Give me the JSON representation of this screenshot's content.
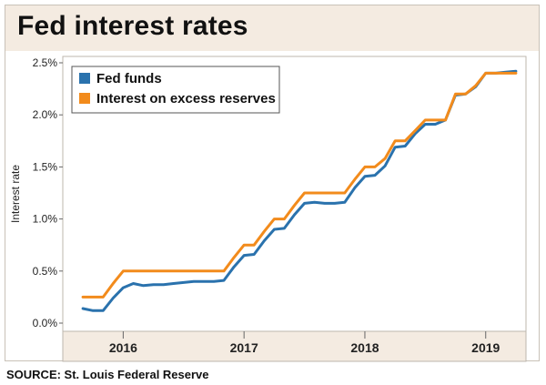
{
  "title": "Fed interest rates",
  "source": "SOURCE: St. Louis Federal Reserve",
  "colors": {
    "fed_funds": "#2a72ad",
    "ioer": "#f28b1c",
    "title_band": "#f4ebe1"
  },
  "chart_data": {
    "type": "line",
    "title": "Fed interest rates",
    "xlabel": "",
    "ylabel": "Interest rate",
    "x_tick_labels": [
      "2016",
      "2017",
      "2018",
      "2019"
    ],
    "y_tick_labels": [
      "0.0%",
      "0.5%",
      "1.0%",
      "1.5%",
      "2.0%",
      "2.5%"
    ],
    "y_ticks": [
      0,
      0.5,
      1.0,
      1.5,
      2.0,
      2.5
    ],
    "ylim": [
      0,
      2.5
    ],
    "xlim": [
      "2015-07",
      "2019-05"
    ],
    "x_ticks": [
      "2016",
      "2017",
      "2018",
      "2019"
    ],
    "grid": false,
    "legend": "top-left",
    "series": [
      {
        "name": "Fed funds",
        "color": "#2a72ad",
        "x": [
          "2015-09",
          "2015-10",
          "2015-11",
          "2015-12",
          "2016-01",
          "2016-02",
          "2016-03",
          "2016-04",
          "2016-05",
          "2016-06",
          "2016-07",
          "2016-08",
          "2016-09",
          "2016-10",
          "2016-11",
          "2016-12",
          "2017-01",
          "2017-02",
          "2017-03",
          "2017-04",
          "2017-05",
          "2017-06",
          "2017-07",
          "2017-08",
          "2017-09",
          "2017-10",
          "2017-11",
          "2017-12",
          "2018-01",
          "2018-02",
          "2018-03",
          "2018-04",
          "2018-05",
          "2018-06",
          "2018-07",
          "2018-08",
          "2018-09",
          "2018-10",
          "2018-11",
          "2018-12",
          "2019-01",
          "2019-02",
          "2019-03",
          "2019-04"
        ],
        "values": [
          0.14,
          0.12,
          0.12,
          0.24,
          0.34,
          0.38,
          0.36,
          0.37,
          0.37,
          0.38,
          0.39,
          0.4,
          0.4,
          0.4,
          0.41,
          0.54,
          0.65,
          0.66,
          0.79,
          0.9,
          0.91,
          1.04,
          1.15,
          1.16,
          1.15,
          1.15,
          1.16,
          1.3,
          1.41,
          1.42,
          1.51,
          1.69,
          1.7,
          1.82,
          1.91,
          1.91,
          1.95,
          2.19,
          2.2,
          2.27,
          2.4,
          2.4,
          2.41,
          2.42
        ]
      },
      {
        "name": "Interest on excess reserves",
        "color": "#f28b1c",
        "x": [
          "2015-09",
          "2015-10",
          "2015-11",
          "2015-12",
          "2016-01",
          "2016-02",
          "2016-03",
          "2016-04",
          "2016-05",
          "2016-06",
          "2016-07",
          "2016-08",
          "2016-09",
          "2016-10",
          "2016-11",
          "2016-12",
          "2017-01",
          "2017-02",
          "2017-03",
          "2017-04",
          "2017-05",
          "2017-06",
          "2017-07",
          "2017-08",
          "2017-09",
          "2017-10",
          "2017-11",
          "2017-12",
          "2018-01",
          "2018-02",
          "2018-03",
          "2018-04",
          "2018-05",
          "2018-06",
          "2018-07",
          "2018-08",
          "2018-09",
          "2018-10",
          "2018-11",
          "2018-12",
          "2019-01",
          "2019-02",
          "2019-03",
          "2019-04"
        ],
        "values": [
          0.25,
          0.25,
          0.25,
          0.38,
          0.5,
          0.5,
          0.5,
          0.5,
          0.5,
          0.5,
          0.5,
          0.5,
          0.5,
          0.5,
          0.5,
          0.63,
          0.75,
          0.75,
          0.88,
          1.0,
          1.0,
          1.13,
          1.25,
          1.25,
          1.25,
          1.25,
          1.25,
          1.38,
          1.5,
          1.5,
          1.58,
          1.75,
          1.75,
          1.85,
          1.95,
          1.95,
          1.95,
          2.2,
          2.2,
          2.28,
          2.4,
          2.4,
          2.4,
          2.4
        ]
      }
    ]
  }
}
